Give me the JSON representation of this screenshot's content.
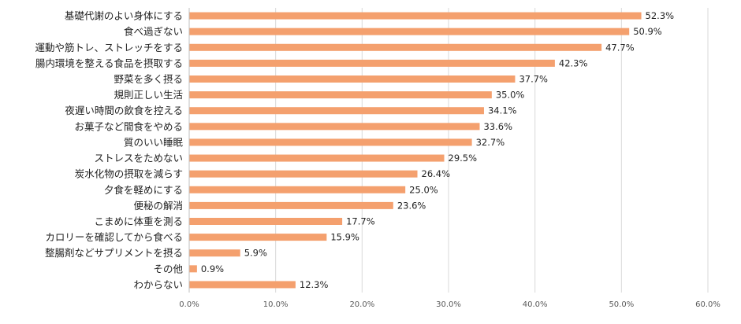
{
  "chart_data": {
    "type": "bar",
    "orientation": "horizontal",
    "title": "",
    "xlabel": "",
    "ylabel": "",
    "xlim": [
      0,
      60
    ],
    "grid": true,
    "legend": "none",
    "value_suffix": "%",
    "tick_values": [
      0,
      10,
      20,
      30,
      40,
      50,
      60
    ],
    "tick_labels": [
      "0.0%",
      "10.0%",
      "20.0%",
      "30.0%",
      "40.0%",
      "50.0%",
      "60.0%"
    ],
    "categories": [
      "基礎代謝のよい身体にする",
      "食べ過ぎない",
      "運動や筋トレ、ストレッチをする",
      "腸内環境を整える食品を摂取する",
      "野菜を多く摂る",
      "規則正しい生活",
      "夜遅い時間の飲食を控える",
      "お菓子など間食をやめる",
      "質のいい睡眠",
      "ストレスをためない",
      "炭水化物の摂取を減らす",
      "夕食を軽めにする",
      "便秘の解消",
      "こまめに体重を測る",
      "カロリーを確認してから食べる",
      "整腸剤などサプリメントを摂る",
      "その他",
      "わからない"
    ],
    "values": [
      52.3,
      50.9,
      47.7,
      42.3,
      37.7,
      35.0,
      34.1,
      33.6,
      32.7,
      29.5,
      26.4,
      25.0,
      23.6,
      17.7,
      15.9,
      5.9,
      0.9,
      12.3
    ],
    "value_labels": [
      "52.3%",
      "50.9%",
      "47.7%",
      "42.3%",
      "37.7%",
      "35.0%",
      "34.1%",
      "33.6%",
      "32.7%",
      "29.5%",
      "26.4%",
      "25.0%",
      "23.6%",
      "17.7%",
      "15.9%",
      "5.9%",
      "0.9%",
      "12.3%"
    ],
    "colors": {
      "bar": "#F4A06E",
      "grid": "#D9D9D9",
      "axis": "#BFBFBF",
      "text": "#222222",
      "tick_text": "#595959"
    }
  }
}
